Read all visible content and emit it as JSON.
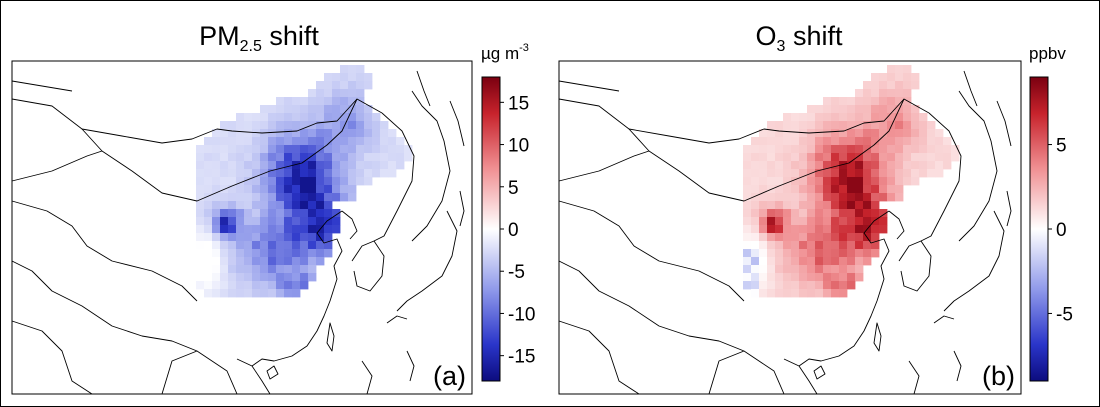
{
  "figure": {
    "panels": [
      {
        "id": "a",
        "title_main": "PM",
        "title_sub": "2.5",
        "title_rest": " shift",
        "panel_label": "(a)",
        "colorbar": {
          "unit": "µg m",
          "unit_sup": "-3",
          "min": -18,
          "max": 18,
          "ticks": [
            -15,
            -10,
            -5,
            0,
            5,
            10,
            15
          ]
        },
        "field_sign": "negative",
        "peak_value": -17
      },
      {
        "id": "b",
        "title_main": "O",
        "title_sub": "3",
        "title_rest": " shift",
        "panel_label": "(b)",
        "colorbar": {
          "unit": "ppbv",
          "unit_sup": "",
          "min": -9,
          "max": 9,
          "ticks": [
            -5,
            0,
            5
          ]
        },
        "field_sign": "positive",
        "peak_value": 9
      }
    ],
    "colormap": {
      "low": "#0c0c7e",
      "mid": "#ffffff",
      "high": "#7a0010"
    }
  }
}
